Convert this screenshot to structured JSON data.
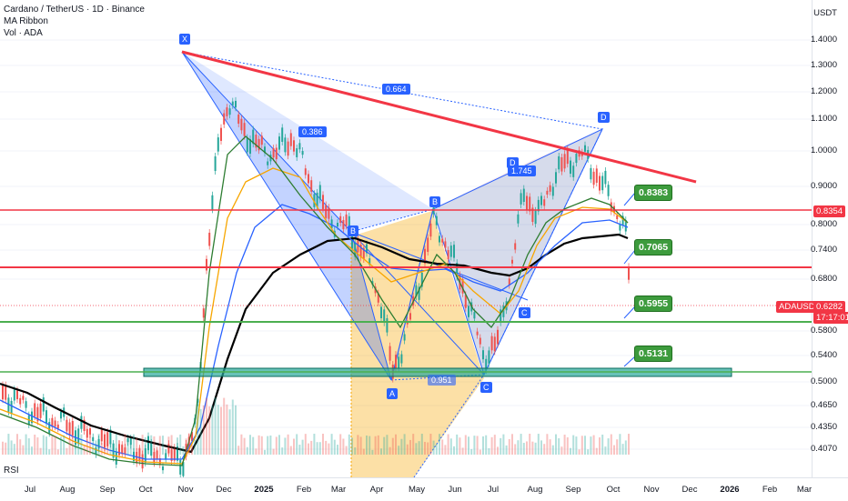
{
  "header": {
    "symbol_line": "Cardano / TetherUS · 1D · Binance",
    "indicator_1": "MA Ribbon",
    "indicator_2": "Vol · ADA"
  },
  "currency_label": "USDT",
  "rsi_label": "RSI",
  "price_axis": [
    "1.4000",
    "1.3000",
    "1.2000",
    "1.1000",
    "1.0000",
    "0.9000",
    "0.8000",
    "0.7400",
    "0.6800",
    "0.6282",
    "0.5800",
    "0.5400",
    "0.5000",
    "0.4650",
    "0.4350",
    "0.4070"
  ],
  "highlight_price": "0.8354",
  "current": {
    "ticker": "ADAUSDT",
    "price": "0.6282",
    "countdown": "17:17:01"
  },
  "time_axis": [
    "Jul",
    "Aug",
    "Sep",
    "Oct",
    "Nov",
    "Dec",
    "2025",
    "Feb",
    "Mar",
    "Apr",
    "May",
    "Jun",
    "Jul",
    "Aug",
    "Sep",
    "Oct",
    "Nov",
    "Dec",
    "2026",
    "Feb",
    "Mar"
  ],
  "levels": [
    "0.8383",
    "0.7065",
    "0.5955",
    "0.5131"
  ],
  "pattern_points": [
    "X",
    "A",
    "B",
    "C",
    "D",
    "B",
    "C",
    "D",
    "C",
    "A"
  ],
  "ratios": [
    "0.664",
    "0.386",
    "1.745",
    "0.951"
  ],
  "colors": {
    "red": "#f23645",
    "green": "#4caf50",
    "blue": "#2962ff",
    "orange": "#f7a600",
    "black": "#000000"
  }
}
